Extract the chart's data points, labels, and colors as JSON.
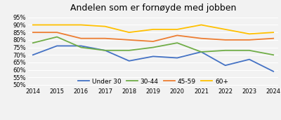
{
  "title": "Andelen som er fornøyde med jobben",
  "years": [
    2014,
    2015,
    2016,
    2017,
    2018,
    2019,
    2020,
    2021,
    2022,
    2023,
    2024
  ],
  "series": {
    "Under 30": {
      "values": [
        70,
        76,
        76,
        73,
        66,
        69,
        68,
        72,
        63,
        67,
        59
      ],
      "color": "#4472C4"
    },
    "30-44": {
      "values": [
        78,
        82,
        75,
        73,
        73,
        75,
        78,
        72,
        73,
        73,
        70
      ],
      "color": "#70AD47"
    },
    "45-59": {
      "values": [
        85,
        85,
        81,
        81,
        80,
        79,
        83,
        81,
        80,
        80,
        81
      ],
      "color": "#ED7D31"
    },
    "60+": {
      "values": [
        90,
        90,
        90,
        89,
        85,
        87,
        87,
        90,
        87,
        84,
        85
      ],
      "color": "#FFC000"
    }
  },
  "ylim": [
    49,
    97
  ],
  "yticks": [
    50,
    55,
    60,
    65,
    70,
    75,
    80,
    85,
    90,
    95
  ],
  "ytick_labels": [
    "50%",
    "55%",
    "60%",
    "65%",
    "70%",
    "75%",
    "80%",
    "85%",
    "90%",
    "95%"
  ],
  "background_color": "#f2f2f2",
  "legend_order": [
    "Under 30",
    "30-44",
    "45-59",
    "60+"
  ],
  "title_fontsize": 9,
  "tick_fontsize": 6,
  "legend_fontsize": 6.5,
  "linewidth": 1.3
}
